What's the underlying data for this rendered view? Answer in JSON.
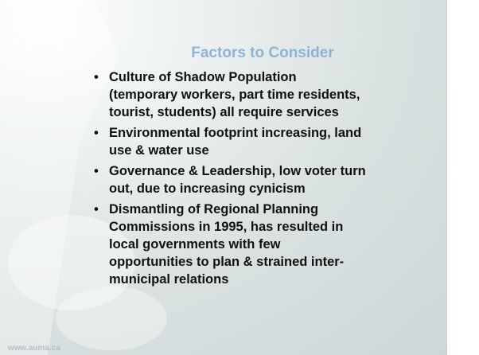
{
  "slide": {
    "title": "Factors to Consider",
    "bullets": [
      {
        "lines": [
          "Culture of Shadow Population",
          "(temporary workers, part time residents,",
          "tourist, students) all require services"
        ]
      },
      {
        "lines": [
          "Environmental footprint increasing, land",
          "use & water use"
        ]
      },
      {
        "lines": [
          "Governance & Leadership, low voter turn",
          "out, due to increasing cynicism"
        ]
      },
      {
        "lines": [
          "Dismantling of Regional Planning",
          "Commissions in 1995, has resulted in",
          "local governments with few",
          "opportunities to plan & strained inter-",
          "municipal relations"
        ]
      }
    ],
    "footer": "www.auma.ca"
  }
}
